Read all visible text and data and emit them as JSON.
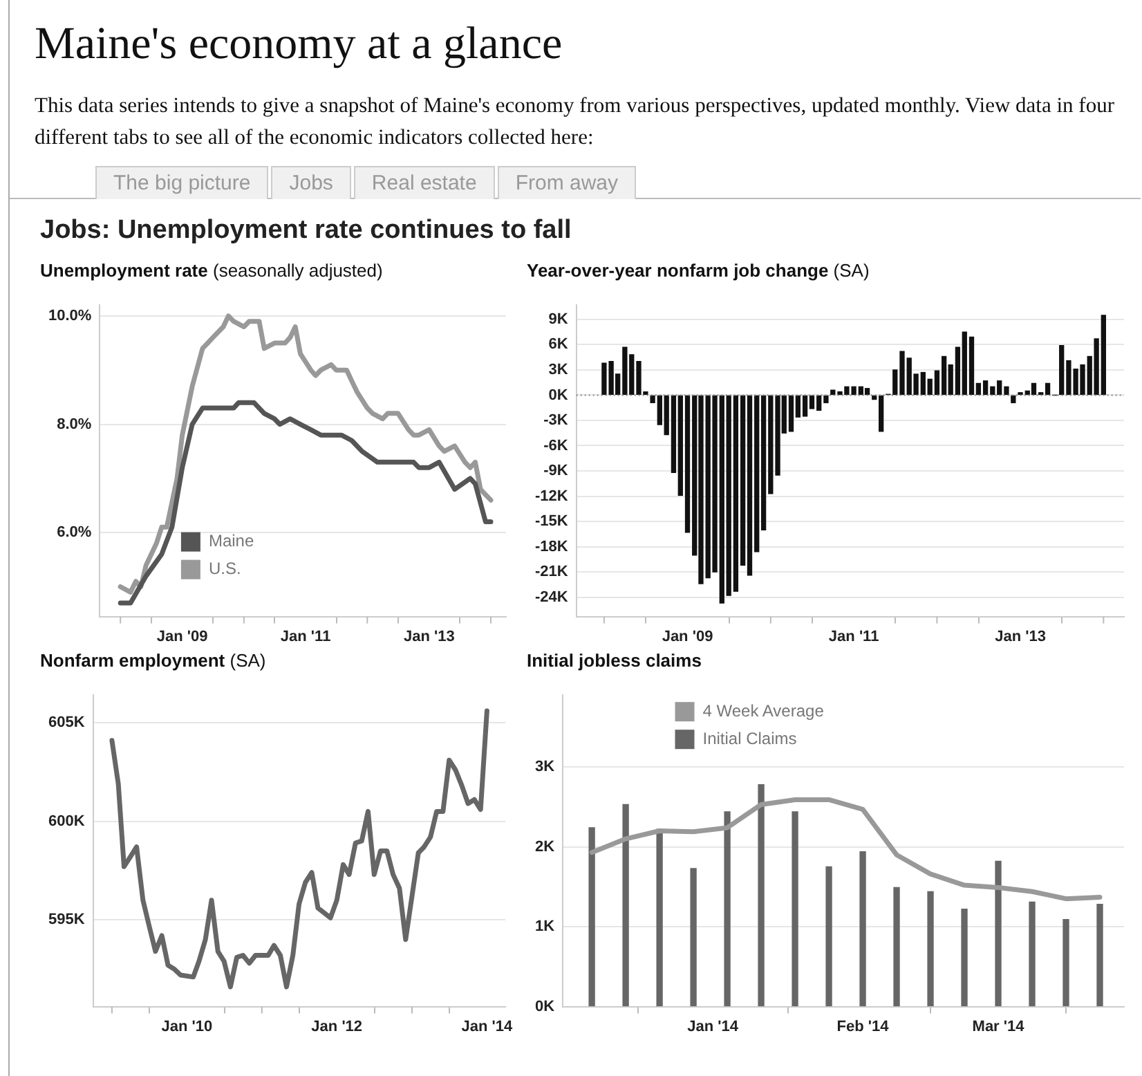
{
  "chart_data": [
    {
      "type": "other",
      "title": "Maine's economy at a glance",
      "subtitle": "This data series intends to give a snapshot of Maine's economy from various perspectives, updated monthly. View data in four different tabs to see all of the economic indicators collected here:",
      "annotations": [
        "The big picture",
        "Jobs",
        "Real estate",
        "From away"
      ]
    },
    {
      "type": "other",
      "title": "Jobs: Unemployment rate continues to fall"
    },
    {
      "type": "line",
      "title": "Unemployment rate",
      "subtitle": "(seasonally adjusted)",
      "legend": "bottom left",
      "grid": "y",
      "xlim": [
        "2007-09",
        "2014-04"
      ],
      "ylim": [
        4.45,
        10.2
      ],
      "xticks": [
        {
          "value": "2008-01",
          "label": null
        },
        {
          "value": "2009-01",
          "label": "Jan '09"
        },
        {
          "value": "2010-01",
          "label": null
        },
        {
          "value": "2011-01",
          "label": "Jan '11"
        },
        {
          "value": "2012-01",
          "label": null
        },
        {
          "value": "2013-01",
          "label": "Jan '13"
        },
        {
          "value": "2014-01",
          "label": null
        }
      ],
      "yticks": [
        {
          "value": 6,
          "label": "6.0%"
        },
        {
          "value": 8,
          "label": "8.0%"
        },
        {
          "value": 10,
          "label": "10.0%"
        }
      ],
      "series": [
        {
          "name": "Maine",
          "color": "#555555",
          "x": [
            "2008-01",
            "2008-03",
            "2008-06",
            "2008-09",
            "2008-11",
            "2009-01",
            "2009-03",
            "2009-05",
            "2009-11",
            "2009-12",
            "2010-03",
            "2010-05",
            "2010-07",
            "2010-08",
            "2010-10",
            "2010-12",
            "2011-02",
            "2011-04",
            "2011-08",
            "2011-10",
            "2011-12",
            "2012-03",
            "2012-10",
            "2012-11",
            "2013-01",
            "2013-03",
            "2013-06",
            "2013-09",
            "2013-10",
            "2013-12",
            "2014-01"
          ],
          "values": [
            4.7,
            4.7,
            5.2,
            5.6,
            6.1,
            7.2,
            8.0,
            8.3,
            8.3,
            8.4,
            8.4,
            8.2,
            8.1,
            8.0,
            8.1,
            8.0,
            7.9,
            7.8,
            7.8,
            7.7,
            7.5,
            7.3,
            7.3,
            7.2,
            7.2,
            7.3,
            6.8,
            7.0,
            6.9,
            6.2,
            6.2
          ]
        },
        {
          "name": "U.S.",
          "color": "#999999",
          "x": [
            "2008-01",
            "2008-03",
            "2008-04",
            "2008-05",
            "2008-06",
            "2008-08",
            "2008-09",
            "2008-10",
            "2008-12",
            "2009-01",
            "2009-03",
            "2009-05",
            "2009-06",
            "2009-07",
            "2009-09",
            "2009-10",
            "2009-11",
            "2010-01",
            "2010-02",
            "2010-04",
            "2010-05",
            "2010-07",
            "2010-09",
            "2010-10",
            "2010-11",
            "2010-12",
            "2011-02",
            "2011-03",
            "2011-04",
            "2011-06",
            "2011-07",
            "2011-09",
            "2011-10",
            "2011-11",
            "2012-01",
            "2012-02",
            "2012-04",
            "2012-05",
            "2012-07",
            "2012-09",
            "2012-10",
            "2012-11",
            "2013-01",
            "2013-03",
            "2013-04",
            "2013-06",
            "2013-08",
            "2013-09",
            "2013-10",
            "2013-11",
            "2013-12",
            "2014-01"
          ],
          "values": [
            5.0,
            4.9,
            5.1,
            5.0,
            5.4,
            5.8,
            6.1,
            6.1,
            7.0,
            7.8,
            8.7,
            9.4,
            9.5,
            9.6,
            9.8,
            10.0,
            9.9,
            9.8,
            9.9,
            9.9,
            9.4,
            9.5,
            9.5,
            9.6,
            9.8,
            9.3,
            9.0,
            8.9,
            9.0,
            9.1,
            9.0,
            9.0,
            8.8,
            8.6,
            8.3,
            8.2,
            8.1,
            8.2,
            8.2,
            7.9,
            7.8,
            7.8,
            7.9,
            7.6,
            7.5,
            7.6,
            7.3,
            7.2,
            7.3,
            6.8,
            6.7,
            6.6
          ]
        }
      ]
    },
    {
      "type": "bar",
      "title": "Year-over-year nonfarm job change",
      "subtitle": "(SA)",
      "grid": "y",
      "xlim": [
        "2007-09",
        "2014-04"
      ],
      "ylim": [
        -26300,
        10700
      ],
      "xticks": [
        {
          "value": "2008-01",
          "label": null
        },
        {
          "value": "2009-01",
          "label": "Jan '09"
        },
        {
          "value": "2010-01",
          "label": null
        },
        {
          "value": "2011-01",
          "label": "Jan '11"
        },
        {
          "value": "2012-01",
          "label": null
        },
        {
          "value": "2013-01",
          "label": "Jan '13"
        },
        {
          "value": "2014-01",
          "label": null
        }
      ],
      "yticks": [
        {
          "value": 9000,
          "label": "9K"
        },
        {
          "value": 6000,
          "label": "6K"
        },
        {
          "value": 3000,
          "label": "3K"
        },
        {
          "value": 0,
          "label": "0K"
        },
        {
          "value": -3000,
          "label": "-3K"
        },
        {
          "value": -6000,
          "label": "-6K"
        },
        {
          "value": -9000,
          "label": "-9K"
        },
        {
          "value": -12000,
          "label": "-12K"
        },
        {
          "value": -15000,
          "label": "-15K"
        },
        {
          "value": -18000,
          "label": "-18K"
        },
        {
          "value": -21000,
          "label": "-21K"
        },
        {
          "value": -24000,
          "label": "-24K"
        }
      ],
      "ref_lines": [
        {
          "axis": "y",
          "value": 0,
          "line_style": "dotted",
          "color": "#888888"
        }
      ],
      "x": [
        "2008-01",
        "2008-02",
        "2008-03",
        "2008-04",
        "2008-05",
        "2008-06",
        "2008-07",
        "2008-08",
        "2008-09",
        "2008-10",
        "2008-11",
        "2008-12",
        "2009-01",
        "2009-02",
        "2009-03",
        "2009-04",
        "2009-05",
        "2009-06",
        "2009-07",
        "2009-08",
        "2009-09",
        "2009-10",
        "2009-11",
        "2009-12",
        "2010-01",
        "2010-02",
        "2010-03",
        "2010-04",
        "2010-05",
        "2010-06",
        "2010-07",
        "2010-08",
        "2010-09",
        "2010-10",
        "2010-11",
        "2010-12",
        "2011-01",
        "2011-02",
        "2011-03",
        "2011-04",
        "2011-05",
        "2011-06",
        "2011-07",
        "2011-08",
        "2011-09",
        "2011-10",
        "2011-11",
        "2011-12",
        "2012-01",
        "2012-02",
        "2012-03",
        "2012-04",
        "2012-05",
        "2012-06",
        "2012-07",
        "2012-08",
        "2012-09",
        "2012-10",
        "2012-11",
        "2012-12",
        "2013-01",
        "2013-02",
        "2013-03",
        "2013-04",
        "2013-05",
        "2013-06",
        "2013-07",
        "2013-08",
        "2013-09",
        "2013-10",
        "2013-11",
        "2013-12",
        "2014-01"
      ],
      "series": [
        {
          "color": "#111111",
          "values": [
            3800,
            4000,
            2500,
            5700,
            4800,
            4000,
            400,
            -900,
            -3500,
            -4700,
            -9200,
            -11900,
            -16300,
            -19000,
            -22400,
            -21700,
            -21000,
            -24700,
            -23800,
            -23300,
            -20200,
            -21400,
            -18600,
            -16000,
            -11700,
            -9500,
            -4500,
            -4300,
            -2600,
            -2500,
            -1600,
            -1800,
            -900,
            600,
            400,
            1000,
            1000,
            1000,
            800,
            -500,
            -4300,
            100,
            3000,
            5200,
            4400,
            2500,
            2700,
            1900,
            2900,
            4600,
            3600,
            5700,
            7500,
            6900,
            1400,
            1700,
            1000,
            1700,
            1000,
            -900,
            300,
            500,
            1400,
            300,
            1400,
            0,
            5900,
            4100,
            3100,
            3600,
            4600,
            6700,
            9500
          ]
        }
      ]
    },
    {
      "type": "line",
      "title": "Nonfarm employment",
      "subtitle": "(SA)",
      "grid": "y",
      "xlim": [
        "2008-10",
        "2014-04"
      ],
      "ylim": [
        590600,
        606400
      ],
      "xticks": [
        {
          "value": "2009-01",
          "label": null
        },
        {
          "value": "2010-01",
          "label": "Jan '10"
        },
        {
          "value": "2011-01",
          "label": null
        },
        {
          "value": "2012-01",
          "label": "Jan '12"
        },
        {
          "value": "2013-01",
          "label": null
        },
        {
          "value": "2014-01",
          "label": "Jan '14"
        }
      ],
      "yticks": [
        {
          "value": 595000,
          "label": "595K"
        },
        {
          "value": 600000,
          "label": "600K"
        },
        {
          "value": 605000,
          "label": "605K"
        }
      ],
      "x": [
        "2009-01",
        "2009-02",
        "2009-03",
        "2009-04",
        "2009-05",
        "2009-06",
        "2009-07",
        "2009-08",
        "2009-09",
        "2009-10",
        "2009-11",
        "2009-12",
        "2010-02",
        "2010-03",
        "2010-04",
        "2010-05",
        "2010-06",
        "2010-07",
        "2010-08",
        "2010-09",
        "2010-10",
        "2010-11",
        "2010-12",
        "2011-02",
        "2011-03",
        "2011-04",
        "2011-05",
        "2011-06",
        "2011-07",
        "2011-08",
        "2011-09",
        "2011-10",
        "2011-12",
        "2012-01",
        "2012-02",
        "2012-03",
        "2012-04",
        "2012-05",
        "2012-06",
        "2012-07",
        "2012-08",
        "2012-09",
        "2012-10",
        "2012-11",
        "2012-12",
        "2013-02",
        "2013-03",
        "2013-04",
        "2013-05",
        "2013-06",
        "2013-07",
        "2013-08",
        "2013-09",
        "2013-10",
        "2013-11",
        "2013-12",
        "2014-01"
      ],
      "series": [
        {
          "color": "#666666",
          "values": [
            604100,
            601900,
            597700,
            598200,
            598700,
            596000,
            594700,
            593400,
            594200,
            592700,
            592500,
            592200,
            592100,
            592900,
            594000,
            596000,
            593400,
            592900,
            591600,
            593100,
            593200,
            592800,
            593200,
            593200,
            593700,
            593200,
            591600,
            593200,
            595800,
            596900,
            597400,
            595600,
            595100,
            596000,
            597800,
            597300,
            598900,
            599000,
            600500,
            597300,
            598500,
            598500,
            597300,
            596600,
            594000,
            598400,
            598700,
            599200,
            600500,
            600500,
            603100,
            602600,
            601800,
            600900,
            601100,
            600600,
            605600
          ]
        }
      ]
    },
    {
      "type": "bar",
      "title": "Initial jobless claims",
      "legend": "top left",
      "grid": "y",
      "xlim": [
        "2013-12-01",
        "2014-03-27"
      ],
      "ylim": [
        0,
        3900
      ],
      "xticks": [
        {
          "value": "2014-01-01",
          "label": "Jan '14"
        },
        {
          "value": "2014-02-01",
          "label": "Feb '14"
        },
        {
          "value": "2014-03-01",
          "label": "Mar '14"
        }
      ],
      "yticks": [
        {
          "value": 0,
          "label": "0K"
        },
        {
          "value": 1000,
          "label": "1K"
        },
        {
          "value": 2000,
          "label": "2K"
        },
        {
          "value": 3000,
          "label": "3K"
        }
      ],
      "x": [
        "2013-12-07",
        "2013-12-14",
        "2013-12-21",
        "2013-12-28",
        "2014-01-04",
        "2014-01-11",
        "2014-01-18",
        "2014-01-25",
        "2014-02-01",
        "2014-02-08",
        "2014-02-15",
        "2014-02-22",
        "2014-03-01",
        "2014-03-08",
        "2014-03-15",
        "2014-03-22"
      ],
      "series": [
        {
          "name": "4 Week Average",
          "type": "line",
          "color": "#999999",
          "values": [
            1930,
            2100,
            2200,
            2190,
            2240,
            2530,
            2590,
            2590,
            2470,
            1900,
            1660,
            1520,
            1490,
            1440,
            1350,
            1370
          ]
        },
        {
          "name": "Initial Claims",
          "color": "#666666",
          "values": [
            2240,
            2530,
            2220,
            1730,
            2440,
            2780,
            2440,
            1750,
            1940,
            1490,
            1440,
            1220,
            1820,
            1310,
            1090,
            1280
          ]
        }
      ]
    }
  ]
}
